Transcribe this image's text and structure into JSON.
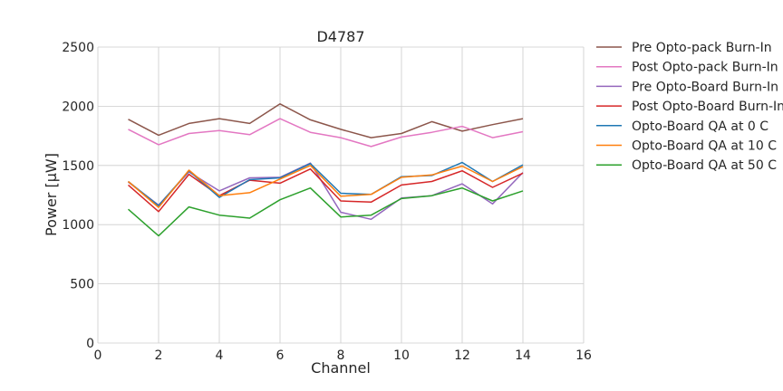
{
  "chart_data": {
    "type": "line",
    "title": "D4787",
    "xlabel": "Channel",
    "ylabel": "Power [μW]",
    "xlim": [
      0,
      16
    ],
    "ylim": [
      0,
      2500
    ],
    "xticks": [
      "0",
      "2",
      "4",
      "6",
      "8",
      "10",
      "12",
      "14",
      "16"
    ],
    "yticks": [
      "0",
      "500",
      "1000",
      "1500",
      "2000",
      "2500"
    ],
    "grid": true,
    "legend_position": "outside-right",
    "x": [
      1,
      2,
      3,
      4,
      5,
      6,
      7,
      8,
      9,
      10,
      11,
      12,
      13,
      14
    ],
    "series": [
      {
        "name": "Pre Opto-pack Burn-In",
        "color": "#8c564b",
        "values": [
          1890,
          1755,
          1855,
          1895,
          1855,
          2020,
          1885,
          1805,
          1735,
          1770,
          1870,
          1790,
          1845,
          1895
        ]
      },
      {
        "name": "Post Opto-pack Burn-In",
        "color": "#e377c2",
        "values": [
          1805,
          1675,
          1770,
          1795,
          1760,
          1895,
          1780,
          1735,
          1660,
          1740,
          1780,
          1830,
          1735,
          1785
        ]
      },
      {
        "name": "Pre Opto-Board Burn-In",
        "color": "#9467bd",
        "values": [
          1360,
          1165,
          1445,
          1285,
          1395,
          1400,
          1520,
          1105,
          1045,
          1225,
          1245,
          1345,
          1175,
          1440
        ]
      },
      {
        "name": "Post Opto-Board Burn-In",
        "color": "#d62728",
        "values": [
          1335,
          1110,
          1425,
          1245,
          1375,
          1350,
          1470,
          1200,
          1190,
          1335,
          1365,
          1455,
          1315,
          1435
        ]
      },
      {
        "name": "Opto-Board QA at 0 C",
        "color": "#1f77b4",
        "values": [
          1365,
          1160,
          1455,
          1230,
          1380,
          1395,
          1515,
          1265,
          1255,
          1405,
          1415,
          1525,
          1365,
          1505
        ]
      },
      {
        "name": "Opto-Board QA at 10 C",
        "color": "#ff7f0e",
        "values": [
          1365,
          1145,
          1460,
          1245,
          1270,
          1385,
          1500,
          1240,
          1255,
          1400,
          1420,
          1495,
          1365,
          1490
        ]
      },
      {
        "name": "Opto-Board QA at 50 C",
        "color": "#2ca02c",
        "values": [
          1130,
          905,
          1150,
          1080,
          1055,
          1210,
          1310,
          1065,
          1080,
          1220,
          1245,
          1310,
          1200,
          1285
        ]
      }
    ]
  }
}
